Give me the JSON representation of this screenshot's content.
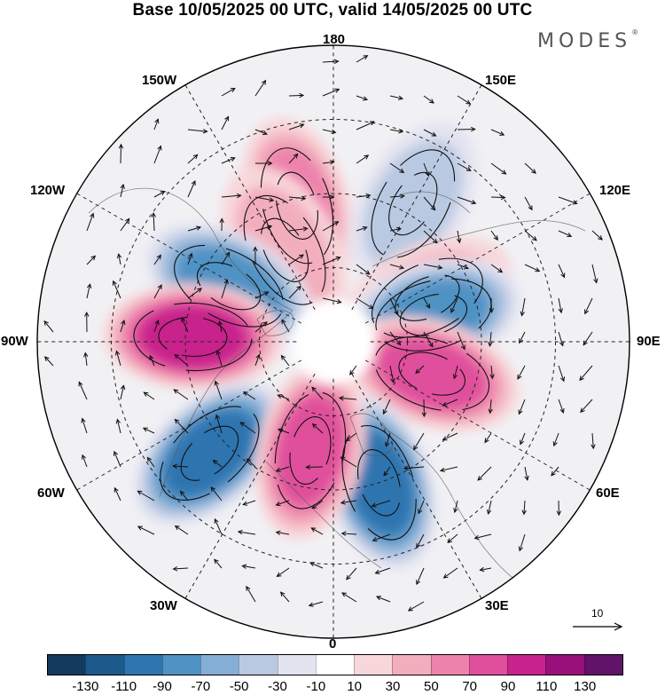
{
  "header": {
    "title": "Base 10/05/2025 00 UTC, valid 14/05/2025 00 UTC",
    "brand": "MODES",
    "brand_mark": "®"
  },
  "map": {
    "projection": "north-polar-stereographic",
    "longitude_labels": {
      "top": "180",
      "top_left": "150W",
      "top_right": "150E",
      "upper_left": "120W",
      "upper_right": "120E",
      "left": "90W",
      "right": "90E",
      "lower_left": "60W",
      "lower_right": "60E",
      "bottom_left": "30W",
      "bottom_right": "30E",
      "bottom": "0"
    },
    "wind_scale_label": "10",
    "anomaly_centers": [
      {
        "lon": -165,
        "lat": 52,
        "value": 70
      },
      {
        "lon": 150,
        "lat": 47,
        "value": -55
      },
      {
        "lon": -152,
        "lat": 62,
        "value": 40
      },
      {
        "lon": 115,
        "lat": 62,
        "value": 55
      },
      {
        "lon": -118,
        "lat": 58,
        "value": -85
      },
      {
        "lon": 105,
        "lat": 62,
        "value": -85
      },
      {
        "lon": -92,
        "lat": 52,
        "value": 100
      },
      {
        "lon": 72,
        "lat": 62,
        "value": 95
      },
      {
        "lon": -48,
        "lat": 45,
        "value": -105
      },
      {
        "lon": 18,
        "lat": 50,
        "value": -105
      },
      {
        "lon": -12,
        "lat": 60,
        "value": 85
      }
    ]
  },
  "colorbar": {
    "colors": [
      "#133b5e",
      "#1d5a8c",
      "#2f75b0",
      "#4f92c4",
      "#84aed5",
      "#b9c9e2",
      "#e4e4f1",
      "#ffffff",
      "#f8d7da",
      "#f3aebd",
      "#ed82ac",
      "#e04f9c",
      "#c8238c",
      "#99107b",
      "#611269"
    ],
    "ticks": [
      "-130",
      "-110",
      "-90",
      "-70",
      "-50",
      "-30",
      "-10",
      "10",
      "30",
      "50",
      "70",
      "90",
      "110",
      "130"
    ]
  }
}
